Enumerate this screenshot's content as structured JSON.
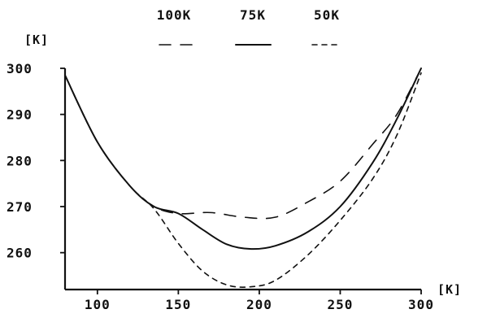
{
  "chart_data": {
    "type": "line",
    "xlim": [
      80,
      300
    ],
    "ylim": [
      252,
      300
    ],
    "x_unit_label": "[K]",
    "y_unit_label": "[K]",
    "x_ticks": [
      100,
      150,
      200,
      250,
      300
    ],
    "y_ticks": [
      260,
      270,
      280,
      290,
      300
    ],
    "x_tick_labels": [
      "100",
      "150",
      "200",
      "250",
      "300"
    ],
    "y_tick_labels": [
      "260",
      "270",
      "280",
      "290",
      "300"
    ],
    "legend": {
      "placement": "top-center"
    },
    "series": [
      {
        "name": "100K",
        "line_style": "long-dash",
        "color": "#111111",
        "x": [
          80,
          100,
          120,
          135,
          150,
          170,
          190,
          210,
          230,
          250,
          270,
          285,
          300
        ],
        "y": [
          298.5,
          284.0,
          274.5,
          270.0,
          268.5,
          268.7,
          267.7,
          267.7,
          271.0,
          275.5,
          283.5,
          290.0,
          300.0
        ]
      },
      {
        "name": "75K",
        "line_style": "solid",
        "color": "#111111",
        "x": [
          80,
          100,
          120,
          135,
          150,
          165,
          180,
          195,
          210,
          230,
          250,
          270,
          285,
          300
        ],
        "y": [
          298.5,
          284.0,
          274.5,
          270.0,
          268.5,
          265.0,
          261.8,
          260.8,
          261.5,
          264.5,
          270.0,
          279.5,
          289.0,
          300.0
        ]
      },
      {
        "name": "50K",
        "line_style": "short-dash",
        "color": "#111111",
        "x": [
          80,
          100,
          120,
          135,
          150,
          165,
          180,
          195,
          210,
          230,
          250,
          270,
          285,
          300
        ],
        "y": [
          298.5,
          284.0,
          274.5,
          269.5,
          262.0,
          256.0,
          253.0,
          252.6,
          254.0,
          259.5,
          267.0,
          276.0,
          285.5,
          299.0
        ]
      }
    ]
  }
}
